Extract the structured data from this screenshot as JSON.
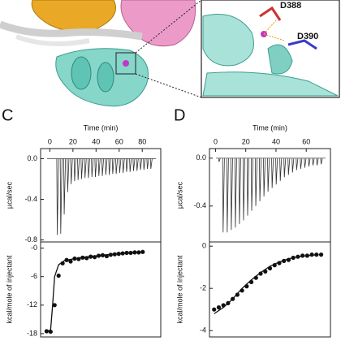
{
  "structure": {
    "labels": [
      "D388",
      "D390"
    ]
  },
  "panels": [
    "C",
    "D"
  ],
  "chart_data": [
    {
      "type": "thermogram",
      "xlabel": "Time (min)",
      "ylabel": "µcal/sec",
      "x": [
        6,
        9,
        12,
        15,
        18,
        21,
        24,
        27,
        30,
        33,
        36,
        39,
        42,
        45,
        48,
        51,
        54,
        57,
        60,
        63,
        66,
        69,
        72,
        75,
        78,
        81,
        84,
        87
      ],
      "values": [
        -0.75,
        -0.74,
        -0.55,
        -0.33,
        -0.25,
        -0.22,
        -0.21,
        -0.2,
        -0.19,
        -0.19,
        -0.18,
        -0.18,
        -0.17,
        -0.17,
        -0.16,
        -0.16,
        -0.15,
        -0.15,
        -0.14,
        -0.14,
        -0.13,
        -0.13,
        -0.12,
        -0.12,
        -0.11,
        -0.11,
        -0.1,
        -0.1
      ],
      "xlim": [
        -8,
        96
      ],
      "xticks": [
        0,
        20,
        40,
        60,
        80
      ],
      "ylim": [
        -0.82,
        0.1
      ],
      "yticks": [
        {
          "value": 0,
          "label": "0.0"
        },
        -0.4,
        -0.8
      ]
    },
    {
      "type": "scatter",
      "ylabel": "kcal/mole of injectant",
      "x": [
        1.5,
        2.5,
        3.5,
        4.5,
        5.5,
        6.5,
        7.5,
        8.5,
        9.5,
        10.5,
        11.5,
        12.5,
        13.5,
        14.5,
        15.5,
        16.5,
        17.5,
        18.5,
        19.5,
        20.5,
        21.5,
        22.5,
        23.5,
        24.5,
        25.5
      ],
      "values": [
        -17.5,
        -17.6,
        -12,
        -5.8,
        -3.2,
        -2.5,
        -2.8,
        -2.2,
        -2.3,
        -2.0,
        -2.1,
        -1.8,
        -1.9,
        -1.6,
        -1.5,
        -1.7,
        -1.4,
        -1.3,
        -1.2,
        -1.1,
        -1.0,
        -1.0,
        -0.9,
        -0.9,
        -0.8
      ],
      "fit_x": [
        1.5,
        2.5,
        3,
        3.5,
        4.5,
        6,
        10,
        15,
        20,
        25.5
      ],
      "fit_values": [
        -17.6,
        -17.2,
        -12,
        -6,
        -3.5,
        -2.6,
        -2.0,
        -1.5,
        -1.1,
        -0.8
      ],
      "xlim": [
        0,
        30
      ],
      "ylim": [
        -18.7,
        1.3
      ],
      "yticks": [
        {
          "value": 0,
          "label": "-0"
        },
        -6,
        -12,
        -18
      ]
    },
    {
      "type": "thermogram",
      "xlabel": "Time (min)",
      "ylabel": "µcal/sec",
      "x": [
        2,
        4.7,
        7.4,
        10.1,
        12.8,
        15.5,
        18.2,
        20.9,
        23.6,
        26.3,
        29,
        31.7,
        34.4,
        37.1,
        39.8,
        42.5,
        45.2,
        47.9,
        50.6,
        53.3,
        56,
        58.7,
        61.4,
        64.1,
        66.8,
        69.5
      ],
      "values": [
        -0.03,
        -0.62,
        -0.62,
        -0.6,
        -0.58,
        -0.55,
        -0.52,
        -0.48,
        -0.44,
        -0.4,
        -0.36,
        -0.32,
        -0.28,
        -0.25,
        -0.22,
        -0.19,
        -0.16,
        -0.14,
        -0.12,
        -0.1,
        -0.09,
        -0.08,
        -0.07,
        -0.06,
        -0.06,
        -0.05
      ],
      "xlim": [
        -4,
        76
      ],
      "xticks": [
        0,
        20,
        40,
        60
      ],
      "ylim": [
        -0.7,
        0.08
      ],
      "yticks": [
        {
          "value": 0,
          "label": "0.0"
        },
        -0.4
      ]
    },
    {
      "type": "scatter",
      "ylabel": "kcal/mole of injectant",
      "x": [
        1,
        2,
        3,
        4,
        5,
        6,
        7,
        8,
        9,
        10,
        11,
        12,
        13,
        14,
        15,
        16,
        17,
        18,
        19,
        20,
        21,
        22,
        23,
        24
      ],
      "values": [
        -3.0,
        -2.9,
        -2.8,
        -2.7,
        -2.5,
        -2.3,
        -2.1,
        -1.9,
        -1.7,
        -1.5,
        -1.3,
        -1.2,
        -1.05,
        -0.9,
        -0.8,
        -0.7,
        -0.65,
        -0.55,
        -0.5,
        -0.45,
        -0.45,
        -0.4,
        -0.4,
        -0.4
      ],
      "fit_x": [
        1,
        3,
        5,
        7,
        9,
        11,
        13,
        15,
        17,
        19,
        21,
        23.5
      ],
      "fit_values": [
        -3.2,
        -2.9,
        -2.5,
        -2.0,
        -1.6,
        -1.25,
        -0.95,
        -0.75,
        -0.6,
        -0.5,
        -0.45,
        -0.4
      ],
      "xlim": [
        0,
        26
      ],
      "ylim": [
        -4.3,
        0.2
      ],
      "yticks": [
        0,
        -2,
        -4
      ]
    }
  ]
}
